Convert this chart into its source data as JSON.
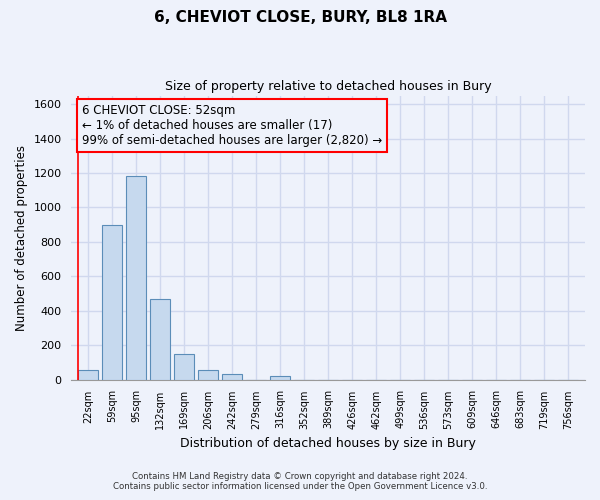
{
  "title": "6, CHEVIOT CLOSE, BURY, BL8 1RA",
  "subtitle": "Size of property relative to detached houses in Bury",
  "xlabel": "Distribution of detached houses by size in Bury",
  "ylabel": "Number of detached properties",
  "bar_labels": [
    "22sqm",
    "59sqm",
    "95sqm",
    "132sqm",
    "169sqm",
    "206sqm",
    "242sqm",
    "279sqm",
    "316sqm",
    "352sqm",
    "389sqm",
    "426sqm",
    "462sqm",
    "499sqm",
    "536sqm",
    "573sqm",
    "609sqm",
    "646sqm",
    "683sqm",
    "719sqm",
    "756sqm"
  ],
  "bar_values": [
    55,
    900,
    1185,
    470,
    150,
    57,
    30,
    0,
    18,
    0,
    0,
    0,
    0,
    0,
    0,
    0,
    0,
    0,
    0,
    0,
    0
  ],
  "bar_color": "#c6d9ee",
  "bar_edge_color": "#5b8db8",
  "ylim": [
    0,
    1650
  ],
  "yticks": [
    0,
    200,
    400,
    600,
    800,
    1000,
    1200,
    1400,
    1600
  ],
  "annotation_text_line1": "6 CHEVIOT CLOSE: 52sqm",
  "annotation_text_line2": "← 1% of detached houses are smaller (17)",
  "annotation_text_line3": "99% of semi-detached houses are larger (2,820) →",
  "vline_x": -0.42,
  "footnote1": "Contains HM Land Registry data © Crown copyright and database right 2024.",
  "footnote2": "Contains public sector information licensed under the Open Government Licence v3.0.",
  "background_color": "#eef2fb",
  "grid_color": "#d0d8ee"
}
